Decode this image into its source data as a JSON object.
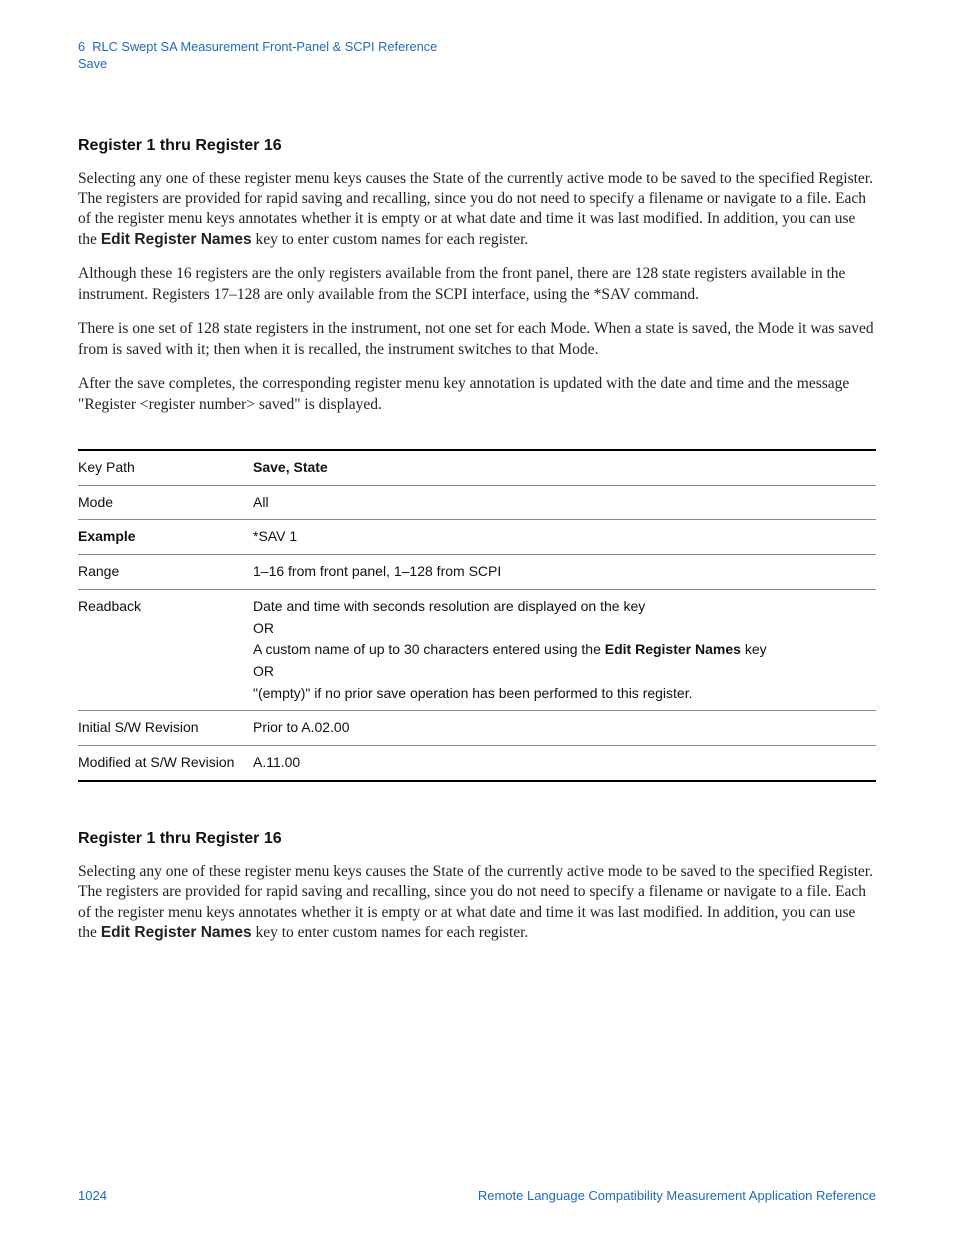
{
  "header": {
    "chapter": "6",
    "chapter_title": "RLC Swept SA Measurement Front-Panel & SCPI Reference",
    "section": "Save"
  },
  "section1": {
    "heading": "Register 1 thru Register 16",
    "p1_a": "Selecting any one of these register menu keys causes the State of the currently active mode to be saved to the specified Register. The registers are provided for rapid saving and recalling, since you do not need to specify a filename or navigate to a file. Each of the register menu keys annotates whether it is empty or at what date and time it was last modified. In addition, you can use the ",
    "p1_bold": "Edit Register Names",
    "p1_b": " key to enter custom names for each register.",
    "p2": "Although these 16 registers are the only registers available from the front panel, there are 128 state registers available in the instrument. Registers 17–128 are only available from the SCPI interface, using the *SAV command.",
    "p3": "There is one set of 128 state registers in the instrument, not one set for each Mode.  When a state is saved, the Mode it was saved from is saved with it; then when it is recalled, the instrument switches to that Mode.",
    "p4": "After the save completes, the corresponding register menu key annotation is updated with the date and time and the message \"Register <register number> saved\" is displayed."
  },
  "table": {
    "rows": {
      "key_path": {
        "label": "Key Path",
        "value": "Save, State",
        "label_bold": false,
        "value_bold": true
      },
      "mode": {
        "label": "Mode",
        "value": "All",
        "label_bold": false,
        "value_bold": false
      },
      "example": {
        "label": "Example",
        "value": "*SAV 1",
        "label_bold": true,
        "value_bold": false
      },
      "range": {
        "label": "Range",
        "value": "1–16 from front panel, 1–128 from SCPI",
        "label_bold": false,
        "value_bold": false
      },
      "readback": {
        "label": "Readback",
        "line1": "Date and time with seconds resolution are displayed on the key",
        "line2": "OR",
        "line3_a": "A custom name of up to 30 characters entered using the ",
        "line3_bold": "Edit Register Names",
        "line3_b": " key",
        "line4": "OR",
        "line5": "\"(empty)\" if no prior save operation has been performed to this register."
      },
      "initial_rev": {
        "label": "Initial S/W Revision",
        "value": "Prior to A.02.00"
      },
      "modified_rev": {
        "label": "Modified at S/W Revision",
        "value": "A.11.00"
      }
    }
  },
  "section2": {
    "heading": "Register 1 thru Register 16",
    "p1_a": "Selecting any one of these register menu keys causes the State of the currently active mode to be saved to the specified Register. The registers are provided for rapid saving and recalling, since you do not need to specify a filename or navigate to a file. Each of the register menu keys annotates whether it is empty or at what date and time it was last modified. In addition, you can use the ",
    "p1_bold": "Edit Register Names",
    "p1_b": " key to enter custom names for each register."
  },
  "footer": {
    "page_number": "1024",
    "doc_title": "Remote Language Compatibility Measurement Application Reference"
  }
}
